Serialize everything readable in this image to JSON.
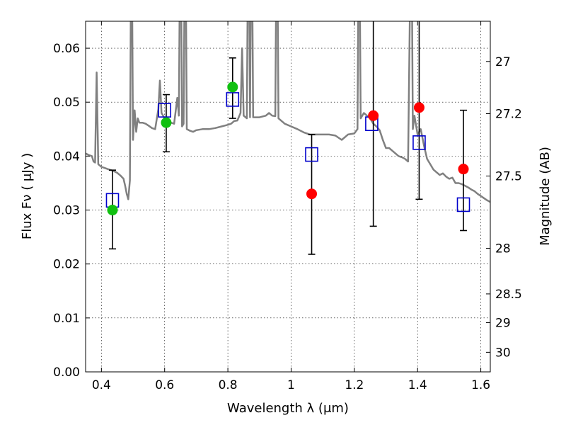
{
  "chart_data": {
    "type": "scatter",
    "xlabel": "Wavelength  λ (μm)",
    "ylabel": "Flux  Fν  ( μJy )",
    "ylabel_right": "Magnitude (AB)",
    "xlim": [
      0.35,
      1.63
    ],
    "ylim": [
      0.0,
      0.065
    ],
    "grid": true,
    "x_ticks": [
      0.4,
      0.6,
      0.8,
      1.0,
      1.2,
      1.4,
      1.6
    ],
    "x_tick_labels": [
      "0.4",
      "0.6",
      "0.8",
      "1",
      "1.2",
      "1.4",
      "1.6"
    ],
    "y_ticks": [
      0.0,
      0.01,
      0.02,
      0.03,
      0.04,
      0.05,
      0.06
    ],
    "y_tick_labels": [
      "0.00",
      "0.01",
      "0.02",
      "0.03",
      "0.04",
      "0.05",
      "0.06"
    ],
    "right_ticks": [
      27,
      27.2,
      27.5,
      28,
      28.5,
      29,
      30
    ],
    "right_tick_labels": [
      "27",
      "27.2",
      "27.5",
      "28",
      "28.5",
      "29",
      "30"
    ],
    "series": [
      {
        "kind": "line",
        "color": "#808080",
        "points": [
          [
            0.35,
            0.0405
          ],
          [
            0.36,
            0.0402
          ],
          [
            0.37,
            0.04
          ],
          [
            0.375,
            0.039
          ],
          [
            0.38,
            0.0388
          ],
          [
            0.385,
            0.0555
          ],
          [
            0.39,
            0.0385
          ],
          [
            0.4,
            0.038
          ],
          [
            0.41,
            0.0378
          ],
          [
            0.42,
            0.0376
          ],
          [
            0.43,
            0.0374
          ],
          [
            0.44,
            0.0372
          ],
          [
            0.45,
            0.0369
          ],
          [
            0.46,
            0.0364
          ],
          [
            0.47,
            0.0358
          ],
          [
            0.475,
            0.0345
          ],
          [
            0.48,
            0.033
          ],
          [
            0.485,
            0.032
          ],
          [
            0.49,
            0.0355
          ],
          [
            0.495,
            0.09
          ],
          [
            0.5,
            0.043
          ],
          [
            0.505,
            0.0485
          ],
          [
            0.51,
            0.0445
          ],
          [
            0.515,
            0.047
          ],
          [
            0.52,
            0.0462
          ],
          [
            0.53,
            0.0462
          ],
          [
            0.54,
            0.046
          ],
          [
            0.55,
            0.0456
          ],
          [
            0.56,
            0.0452
          ],
          [
            0.57,
            0.045
          ],
          [
            0.58,
            0.0487
          ],
          [
            0.585,
            0.054
          ],
          [
            0.59,
            0.048
          ],
          [
            0.6,
            0.047
          ],
          [
            0.61,
            0.0465
          ],
          [
            0.62,
            0.0462
          ],
          [
            0.63,
            0.046
          ],
          [
            0.64,
            0.0508
          ],
          [
            0.645,
            0.0475
          ],
          [
            0.65,
            0.09
          ],
          [
            0.655,
            0.0455
          ],
          [
            0.66,
            0.046
          ],
          [
            0.665,
            0.09
          ],
          [
            0.67,
            0.045
          ],
          [
            0.68,
            0.0447
          ],
          [
            0.69,
            0.0445
          ],
          [
            0.7,
            0.0448
          ],
          [
            0.72,
            0.045
          ],
          [
            0.74,
            0.045
          ],
          [
            0.76,
            0.0452
          ],
          [
            0.78,
            0.0455
          ],
          [
            0.8,
            0.0458
          ],
          [
            0.81,
            0.046
          ],
          [
            0.82,
            0.0465
          ],
          [
            0.83,
            0.0466
          ],
          [
            0.84,
            0.048
          ],
          [
            0.845,
            0.06
          ],
          [
            0.85,
            0.0475
          ],
          [
            0.86,
            0.047
          ],
          [
            0.865,
            0.09
          ],
          [
            0.87,
            0.0472
          ],
          [
            0.875,
            0.09
          ],
          [
            0.88,
            0.0472
          ],
          [
            0.89,
            0.0472
          ],
          [
            0.9,
            0.0472
          ],
          [
            0.92,
            0.0475
          ],
          [
            0.93,
            0.048
          ],
          [
            0.94,
            0.0475
          ],
          [
            0.95,
            0.0474
          ],
          [
            0.955,
            0.09
          ],
          [
            0.96,
            0.047
          ],
          [
            0.97,
            0.0465
          ],
          [
            0.98,
            0.046
          ],
          [
            1.0,
            0.0455
          ],
          [
            1.02,
            0.045
          ],
          [
            1.04,
            0.0444
          ],
          [
            1.06,
            0.044
          ],
          [
            1.08,
            0.044
          ],
          [
            1.1,
            0.044
          ],
          [
            1.12,
            0.044
          ],
          [
            1.14,
            0.0438
          ],
          [
            1.16,
            0.043
          ],
          [
            1.18,
            0.044
          ],
          [
            1.2,
            0.0442
          ],
          [
            1.21,
            0.045
          ],
          [
            1.215,
            0.09
          ],
          [
            1.22,
            0.047
          ],
          [
            1.23,
            0.048
          ],
          [
            1.24,
            0.0475
          ],
          [
            1.25,
            0.047
          ],
          [
            1.26,
            0.046
          ],
          [
            1.27,
            0.0455
          ],
          [
            1.28,
            0.0448
          ],
          [
            1.29,
            0.043
          ],
          [
            1.3,
            0.0415
          ],
          [
            1.31,
            0.0415
          ],
          [
            1.32,
            0.041
          ],
          [
            1.33,
            0.0405
          ],
          [
            1.34,
            0.04
          ],
          [
            1.35,
            0.0398
          ],
          [
            1.36,
            0.0395
          ],
          [
            1.37,
            0.039
          ],
          [
            1.375,
            0.063
          ],
          [
            1.38,
            0.09
          ],
          [
            1.385,
            0.045
          ],
          [
            1.39,
            0.0475
          ],
          [
            1.4,
            0.044
          ],
          [
            1.41,
            0.045
          ],
          [
            1.42,
            0.042
          ],
          [
            1.43,
            0.0395
          ],
          [
            1.44,
            0.0385
          ],
          [
            1.45,
            0.0375
          ],
          [
            1.46,
            0.037
          ],
          [
            1.47,
            0.0365
          ],
          [
            1.48,
            0.0368
          ],
          [
            1.49,
            0.0362
          ],
          [
            1.5,
            0.0358
          ],
          [
            1.51,
            0.036
          ],
          [
            1.52,
            0.035
          ],
          [
            1.53,
            0.035
          ],
          [
            1.54,
            0.0348
          ],
          [
            1.55,
            0.0345
          ],
          [
            1.56,
            0.0342
          ],
          [
            1.57,
            0.0338
          ],
          [
            1.58,
            0.0335
          ],
          [
            1.59,
            0.033
          ],
          [
            1.6,
            0.0326
          ],
          [
            1.61,
            0.0322
          ],
          [
            1.62,
            0.0318
          ],
          [
            1.63,
            0.0315
          ]
        ]
      },
      {
        "kind": "errorbars",
        "color": "#000000",
        "bars": [
          [
            0.435,
            0.0228,
            0.0374
          ],
          [
            0.605,
            0.0408,
            0.0514
          ],
          [
            0.815,
            0.047,
            0.0582
          ],
          [
            1.065,
            0.0218,
            0.044
          ],
          [
            1.26,
            0.027,
            0.07
          ],
          [
            1.405,
            0.032,
            0.07
          ],
          [
            1.545,
            0.0262,
            0.0485
          ]
        ]
      },
      {
        "kind": "square",
        "color": "#0000cc",
        "points": [
          [
            0.435,
            0.0318
          ],
          [
            0.6,
            0.0485
          ],
          [
            0.815,
            0.0505
          ],
          [
            1.065,
            0.0403
          ],
          [
            1.255,
            0.046
          ],
          [
            1.405,
            0.0425
          ],
          [
            1.545,
            0.031
          ]
        ]
      },
      {
        "kind": "circle",
        "color": "#11c011",
        "points": [
          [
            0.435,
            0.03
          ],
          [
            0.605,
            0.0462
          ],
          [
            0.815,
            0.0528
          ]
        ]
      },
      {
        "kind": "circle",
        "color": "#ff0000",
        "points": [
          [
            1.065,
            0.033
          ],
          [
            1.26,
            0.0475
          ],
          [
            1.405,
            0.049
          ],
          [
            1.545,
            0.0376
          ]
        ]
      }
    ]
  }
}
